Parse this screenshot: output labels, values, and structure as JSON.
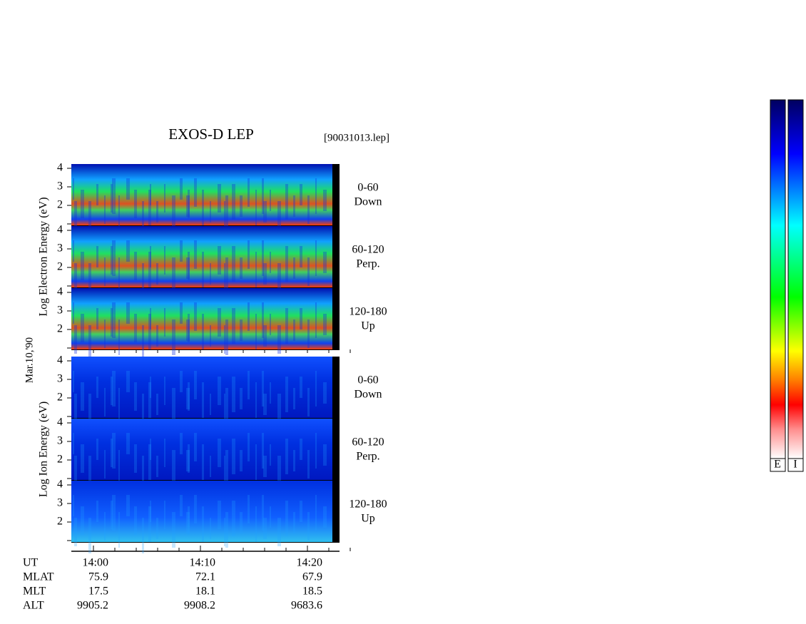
{
  "title": "EXOS-D LEP",
  "file": "[90031013.lep]",
  "date_label": "Mar.10,'90",
  "electron": {
    "ylabel": "Log  Electron  Energy (eV)",
    "panels": [
      {
        "yticks": [
          "4",
          "3",
          "2"
        ],
        "angle": "0-60",
        "direction": "Down"
      },
      {
        "yticks": [
          "4",
          "3",
          "2"
        ],
        "angle": "60-120",
        "direction": "Perp."
      },
      {
        "yticks": [
          "4",
          "3",
          "2"
        ],
        "angle": "120-180",
        "direction": "Up"
      }
    ]
  },
  "ion": {
    "ylabel": "Log  Ion  Energy (eV)",
    "panels": [
      {
        "yticks": [
          "4",
          "3",
          "2"
        ],
        "angle": "0-60",
        "direction": "Down"
      },
      {
        "yticks": [
          "4",
          "3",
          "2"
        ],
        "angle": "60-120",
        "direction": "Perp."
      },
      {
        "yticks": [
          "4",
          "3",
          "2"
        ],
        "angle": "120-180",
        "direction": "Up"
      }
    ]
  },
  "orbit": {
    "row_labels": [
      "UT",
      "MLAT",
      "MLT",
      "ALT"
    ],
    "columns": [
      [
        "14:00",
        "75.9",
        "17.5",
        "9905.2"
      ],
      [
        "14:10",
        "72.1",
        "18.1",
        "9908.2"
      ],
      [
        "14:20",
        "67.9",
        "18.5",
        "9683.6"
      ]
    ]
  },
  "colorbars": [
    "E",
    "I"
  ]
}
